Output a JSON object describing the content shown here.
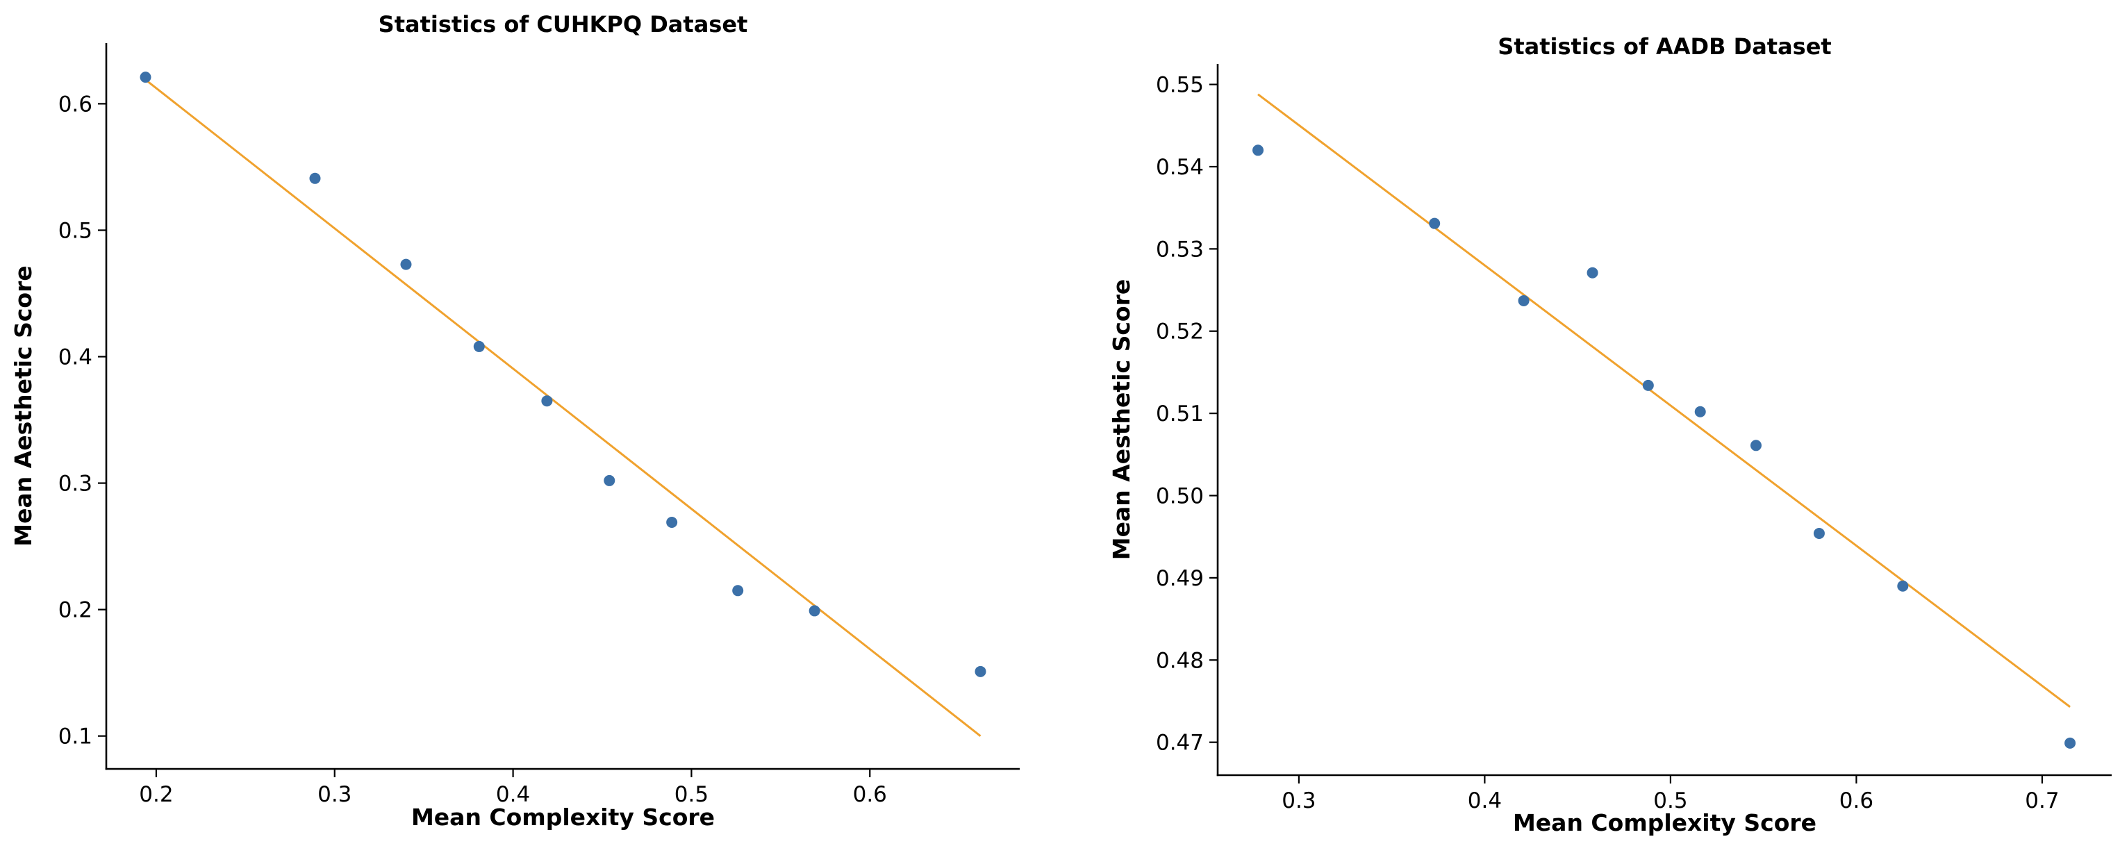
{
  "chart_data": [
    {
      "type": "scatter",
      "title": "Statistics of CUHKPQ Dataset",
      "xlabel": "Mean Complexity Score",
      "ylabel": "Mean Aesthetic Score",
      "xlim": [
        0.172,
        0.684
      ],
      "ylim": [
        0.074,
        0.648
      ],
      "xticks": [
        0.2,
        0.3,
        0.4,
        0.5,
        0.6
      ],
      "xtick_labels": [
        "0.2",
        "0.3",
        "0.4",
        "0.5",
        "0.6"
      ],
      "yticks": [
        0.1,
        0.2,
        0.3,
        0.4,
        0.5,
        0.6
      ],
      "ytick_labels": [
        "0.1",
        "0.2",
        "0.3",
        "0.4",
        "0.5",
        "0.6"
      ],
      "grid": false,
      "points": [
        {
          "x": 0.194,
          "y": 0.621
        },
        {
          "x": 0.289,
          "y": 0.541
        },
        {
          "x": 0.34,
          "y": 0.473
        },
        {
          "x": 0.381,
          "y": 0.408
        },
        {
          "x": 0.419,
          "y": 0.365
        },
        {
          "x": 0.454,
          "y": 0.302
        },
        {
          "x": 0.489,
          "y": 0.269
        },
        {
          "x": 0.526,
          "y": 0.215
        },
        {
          "x": 0.569,
          "y": 0.199
        },
        {
          "x": 0.662,
          "y": 0.151
        }
      ],
      "trend_line": {
        "x": [
          0.194,
          0.662
        ],
        "y": [
          0.619,
          0.1
        ]
      },
      "point_color": "#3b70a8",
      "line_color": "#f0a22e"
    },
    {
      "type": "scatter",
      "title": "Statistics of AADB Dataset",
      "xlabel": "Mean Complexity Score",
      "ylabel": "Mean Aesthetic Score",
      "xlim": [
        0.2563,
        0.7374
      ],
      "ylim": [
        0.466,
        0.5525
      ],
      "xticks": [
        0.3,
        0.4,
        0.5,
        0.6,
        0.7
      ],
      "xtick_labels": [
        "0.3",
        "0.4",
        "0.5",
        "0.6",
        "0.7"
      ],
      "yticks": [
        0.47,
        0.48,
        0.49,
        0.5,
        0.51,
        0.52,
        0.53,
        0.54,
        0.55
      ],
      "ytick_labels": [
        "0.47",
        "0.48",
        "0.49",
        "0.50",
        "0.51",
        "0.52",
        "0.53",
        "0.54",
        "0.55"
      ],
      "grid": false,
      "points": [
        {
          "x": 0.278,
          "y": 0.542
        },
        {
          "x": 0.373,
          "y": 0.5331
        },
        {
          "x": 0.421,
          "y": 0.5237
        },
        {
          "x": 0.458,
          "y": 0.5271
        },
        {
          "x": 0.488,
          "y": 0.5134
        },
        {
          "x": 0.516,
          "y": 0.5102
        },
        {
          "x": 0.546,
          "y": 0.5061
        },
        {
          "x": 0.58,
          "y": 0.4954
        },
        {
          "x": 0.625,
          "y": 0.489
        },
        {
          "x": 0.715,
          "y": 0.4699
        }
      ],
      "trend_line": {
        "x": [
          0.278,
          0.715
        ],
        "y": [
          0.5488,
          0.4743
        ]
      },
      "point_color": "#3b70a8",
      "line_color": "#f0a22e"
    }
  ]
}
